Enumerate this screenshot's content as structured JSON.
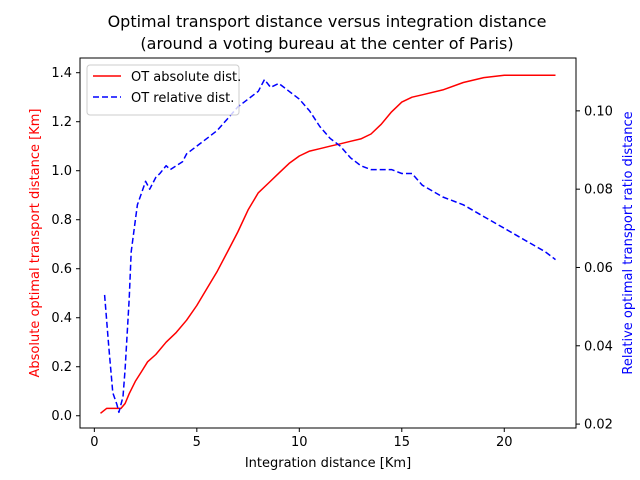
{
  "chart_data": {
    "type": "line",
    "title": "Optimal transport distance versus integration distance",
    "subtitle": "(around a voting bureau at the center of Paris)",
    "xlabel": "Integration distance [Km]",
    "ylabel_left": "Absolute optimal transport distance [Km]",
    "ylabel_right": "Relative optimal transport ratio distance",
    "xlim": [
      -0.7,
      23.5
    ],
    "ylim_left": [
      -0.05,
      1.46
    ],
    "ylim_right": [
      0.019,
      0.1135
    ],
    "xticks": [
      0,
      5,
      10,
      15,
      20
    ],
    "yticks_left": [
      0.0,
      0.2,
      0.4,
      0.6,
      0.8,
      1.0,
      1.2,
      1.4
    ],
    "yticks_right": [
      0.02,
      0.04,
      0.06,
      0.08,
      0.1
    ],
    "grid": false,
    "legend_position": "top-left",
    "series": [
      {
        "name": "OT absolute dist.",
        "axis": "left",
        "color": "#ff0000",
        "style": "solid",
        "x": [
          0.3,
          0.6,
          0.8,
          1.0,
          1.3,
          1.5,
          1.7,
          2.0,
          2.3,
          2.6,
          3.0,
          3.5,
          4.0,
          4.5,
          5.0,
          5.5,
          6.0,
          6.5,
          7.0,
          7.5,
          8.0,
          8.5,
          9.0,
          9.5,
          10.0,
          10.5,
          11.0,
          11.5,
          12.0,
          12.5,
          13.0,
          13.5,
          14.0,
          14.5,
          15.0,
          15.5,
          16.0,
          17.0,
          18.0,
          19.0,
          20.0,
          21.0,
          22.0,
          22.5
        ],
        "y": [
          0.01,
          0.03,
          0.03,
          0.03,
          0.03,
          0.05,
          0.09,
          0.14,
          0.18,
          0.22,
          0.25,
          0.3,
          0.34,
          0.39,
          0.45,
          0.52,
          0.59,
          0.67,
          0.75,
          0.84,
          0.91,
          0.95,
          0.99,
          1.03,
          1.06,
          1.08,
          1.09,
          1.1,
          1.11,
          1.12,
          1.13,
          1.15,
          1.19,
          1.24,
          1.28,
          1.3,
          1.31,
          1.33,
          1.36,
          1.38,
          1.39,
          1.39,
          1.39,
          1.39
        ]
      },
      {
        "name": "OT relative dist.",
        "axis": "right",
        "color": "#0000ff",
        "style": "dashed",
        "x": [
          0.5,
          0.7,
          0.9,
          1.1,
          1.2,
          1.4,
          1.5,
          1.7,
          1.8,
          2.0,
          2.1,
          2.3,
          2.5,
          2.7,
          3.0,
          3.2,
          3.5,
          3.7,
          4.0,
          4.3,
          4.5,
          5.0,
          5.5,
          6.0,
          6.5,
          7.0,
          7.5,
          8.0,
          8.3,
          8.6,
          9.0,
          9.5,
          10.0,
          10.5,
          11.0,
          11.5,
          12.0,
          12.5,
          13.0,
          13.5,
          14.0,
          14.5,
          15.0,
          15.5,
          16.0,
          17.0,
          18.0,
          19.0,
          20.0,
          21.0,
          22.0,
          22.5
        ],
        "y": [
          0.053,
          0.04,
          0.028,
          0.025,
          0.023,
          0.027,
          0.034,
          0.052,
          0.064,
          0.072,
          0.076,
          0.079,
          0.082,
          0.08,
          0.083,
          0.084,
          0.086,
          0.085,
          0.086,
          0.087,
          0.089,
          0.091,
          0.093,
          0.095,
          0.098,
          0.101,
          0.103,
          0.105,
          0.108,
          0.106,
          0.107,
          0.105,
          0.103,
          0.1,
          0.096,
          0.093,
          0.091,
          0.088,
          0.086,
          0.085,
          0.085,
          0.085,
          0.084,
          0.084,
          0.081,
          0.078,
          0.076,
          0.073,
          0.07,
          0.067,
          0.064,
          0.062
        ]
      }
    ]
  }
}
